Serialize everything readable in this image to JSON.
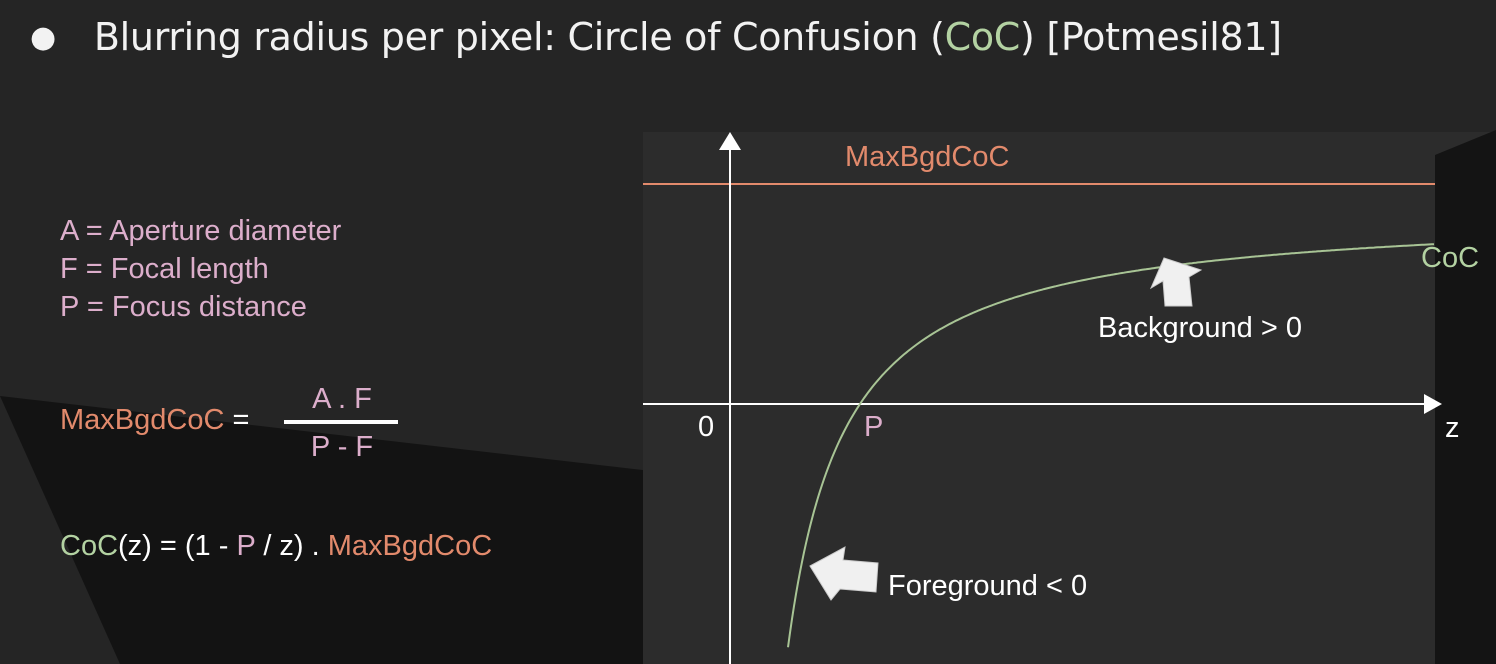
{
  "slide": {
    "title": {
      "bullet": "●",
      "prefix": "Blurring radius per pixel: Circle of Confusion (",
      "coc": "CoC",
      "suffix": ") [Potmesil81]"
    },
    "definitions": [
      "A = Aperture diameter",
      "F = Focal length",
      "P = Focus distance"
    ],
    "formula_max": {
      "lhs": "MaxBgdCoC",
      "equals": " =",
      "numerator": "A . F",
      "denominator": "P - F"
    },
    "formula_coc": {
      "coc": "CoC",
      "part1": "(z) = (1 - ",
      "p": "P",
      "part2": " / z) . ",
      "max": "MaxBgdCoC"
    }
  },
  "diagram": {
    "max_label": "MaxBgdCoC",
    "curve_label": "CoC",
    "origin_label": "0",
    "p_label": "P",
    "z_label": "z",
    "background_label": "Background > 0",
    "foreground_label": "Foreground < 0"
  },
  "colors": {
    "background": "#252525",
    "title_text": "#f2f2f2",
    "coc_green": "#b3d2a2",
    "pink": "#dcaecb",
    "orange": "#e28a6c",
    "axis": "#ffffff",
    "arrow_fill": "#f0f0f0"
  }
}
